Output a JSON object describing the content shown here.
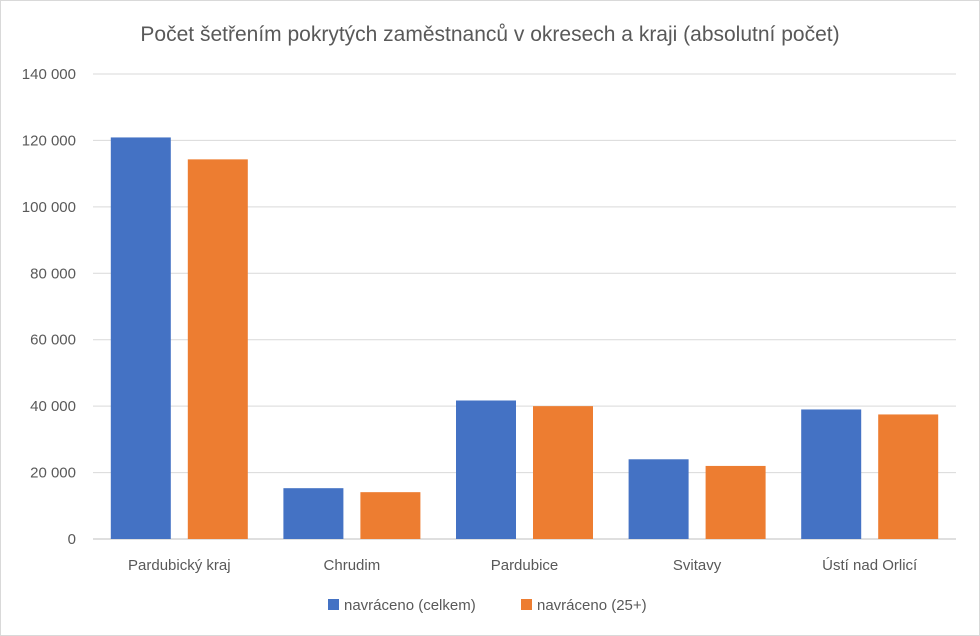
{
  "chart_data": {
    "type": "bar",
    "title": "Počet šetřením pokrytých zaměstnanců v okresech a kraji (absolutní počet)",
    "xlabel": "",
    "ylabel": "",
    "categories": [
      "Pardubický kraj",
      "Chrudim",
      "Pardubice",
      "Svitavy",
      "Ústí nad Orlicí"
    ],
    "series": [
      {
        "name": "navráceno (celkem)",
        "color": "#4472C4",
        "values": [
          120900,
          15300,
          41700,
          24000,
          39000
        ]
      },
      {
        "name": "navráceno (25+)",
        "color": "#ED7D31",
        "values": [
          114300,
          14100,
          40000,
          22000,
          37500
        ]
      }
    ],
    "ylim": [
      0,
      140000
    ],
    "yticks": [
      0,
      20000,
      40000,
      60000,
      80000,
      100000,
      120000,
      140000
    ],
    "ytick_labels": [
      "0",
      "20 000",
      "40 000",
      "60 000",
      "80 000",
      "100 000",
      "120 000",
      "140 000"
    ],
    "grid": true,
    "legend_position": "bottom",
    "colors": {
      "gridline": "#d9d9d9",
      "text": "#595959",
      "axis": "#bfbfbf"
    }
  }
}
